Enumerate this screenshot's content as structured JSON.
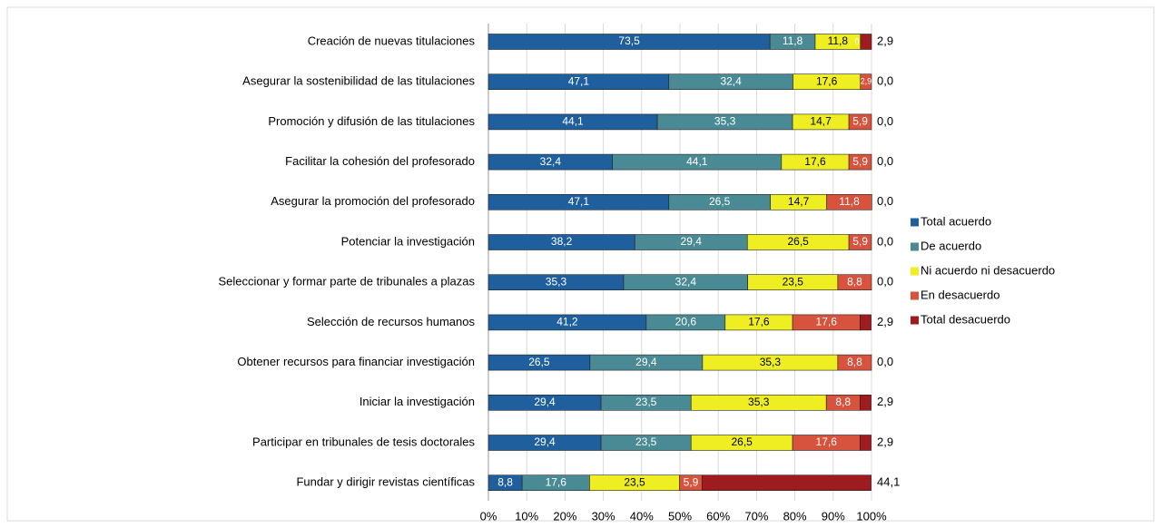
{
  "chart_data": {
    "type": "stacked_barh",
    "categories": [
      "Creación de nuevas titulaciones",
      "Asegurar la sostenibilidad de las titulaciones",
      "Promoción y difusión de las titulaciones",
      "Facilitar la cohesión del profesorado",
      "Asegurar la promoción del profesorado",
      "Potenciar la investigación",
      "Seleccionar y formar parte de tribunales a plazas",
      "Selección de recursos humanos",
      "Obtener recursos para financiar investigación",
      "Iniciar la investigación",
      "Participar en tribunales de tesis doctorales",
      "Fundar y dirigir revistas científicas"
    ],
    "series": [
      {
        "name": "Total acuerdo",
        "color": "#1f5f9e",
        "values": [
          73.5,
          47.1,
          44.1,
          32.4,
          47.1,
          38.2,
          35.3,
          41.2,
          26.5,
          29.4,
          29.4,
          8.8
        ],
        "value_labels": [
          "73,5",
          "47,1",
          "44,1",
          "32,4",
          "47,1",
          "38,2",
          "35,3",
          "41,2",
          "26,5",
          "29,4",
          "29,4",
          "8,8"
        ]
      },
      {
        "name": "De acuerdo",
        "color": "#4a8a94",
        "values": [
          11.8,
          32.4,
          35.3,
          44.1,
          26.5,
          29.4,
          32.4,
          20.6,
          29.4,
          23.5,
          23.5,
          17.6
        ],
        "value_labels": [
          "11,8",
          "32,4",
          "35,3",
          "44,1",
          "26,5",
          "29,4",
          "32,4",
          "20,6",
          "29,4",
          "23,5",
          "23,5",
          "17,6"
        ]
      },
      {
        "name": "Ni acuerdo ni desacuerdo",
        "color": "#eeee22",
        "values": [
          11.8,
          17.6,
          14.7,
          17.6,
          14.7,
          26.5,
          23.5,
          17.6,
          35.3,
          35.3,
          26.5,
          23.5
        ],
        "value_labels": [
          "11,8",
          "17,6",
          "14,7",
          "17,6",
          "14,7",
          "26,5",
          "23,5",
          "17,6",
          "35,3",
          "35,3",
          "26,5",
          "23,5"
        ]
      },
      {
        "name": "En desacuerdo",
        "color": "#d8533d",
        "values": [
          0.0,
          2.9,
          5.9,
          5.9,
          11.8,
          5.9,
          8.8,
          17.6,
          8.8,
          8.8,
          17.6,
          5.9
        ],
        "value_labels": [
          "0,0",
          "2,9",
          "5,9",
          "5,9",
          "11,8",
          "5,9",
          "8,8",
          "17,6",
          "8,8",
          "8,8",
          "17,6",
          "5,9"
        ]
      },
      {
        "name": "Total desacuerdo",
        "color": "#9e1b1f",
        "values": [
          2.9,
          0.0,
          0.0,
          0.0,
          0.0,
          0.0,
          0.0,
          2.9,
          0.0,
          2.9,
          2.9,
          44.1
        ],
        "value_labels": [
          "2,9",
          "0,0",
          "0,0",
          "0,0",
          "0,0",
          "0,0",
          "0,0",
          "2,9",
          "0,0",
          "2,9",
          "2,9",
          "44,1"
        ]
      }
    ],
    "xlim": [
      0,
      100
    ],
    "xticks": [
      {
        "value": 0,
        "label": "0%"
      },
      {
        "value": 10,
        "label": "10%"
      },
      {
        "value": 20,
        "label": "20%"
      },
      {
        "value": 30,
        "label": "30%"
      },
      {
        "value": 40,
        "label": "40%"
      },
      {
        "value": 50,
        "label": "50%"
      },
      {
        "value": 60,
        "label": "60%"
      },
      {
        "value": 70,
        "label": "70%"
      },
      {
        "value": 80,
        "label": "80%"
      },
      {
        "value": 90,
        "label": "90%"
      },
      {
        "value": 100,
        "label": "100%"
      }
    ],
    "grid": true,
    "legend": "right"
  }
}
